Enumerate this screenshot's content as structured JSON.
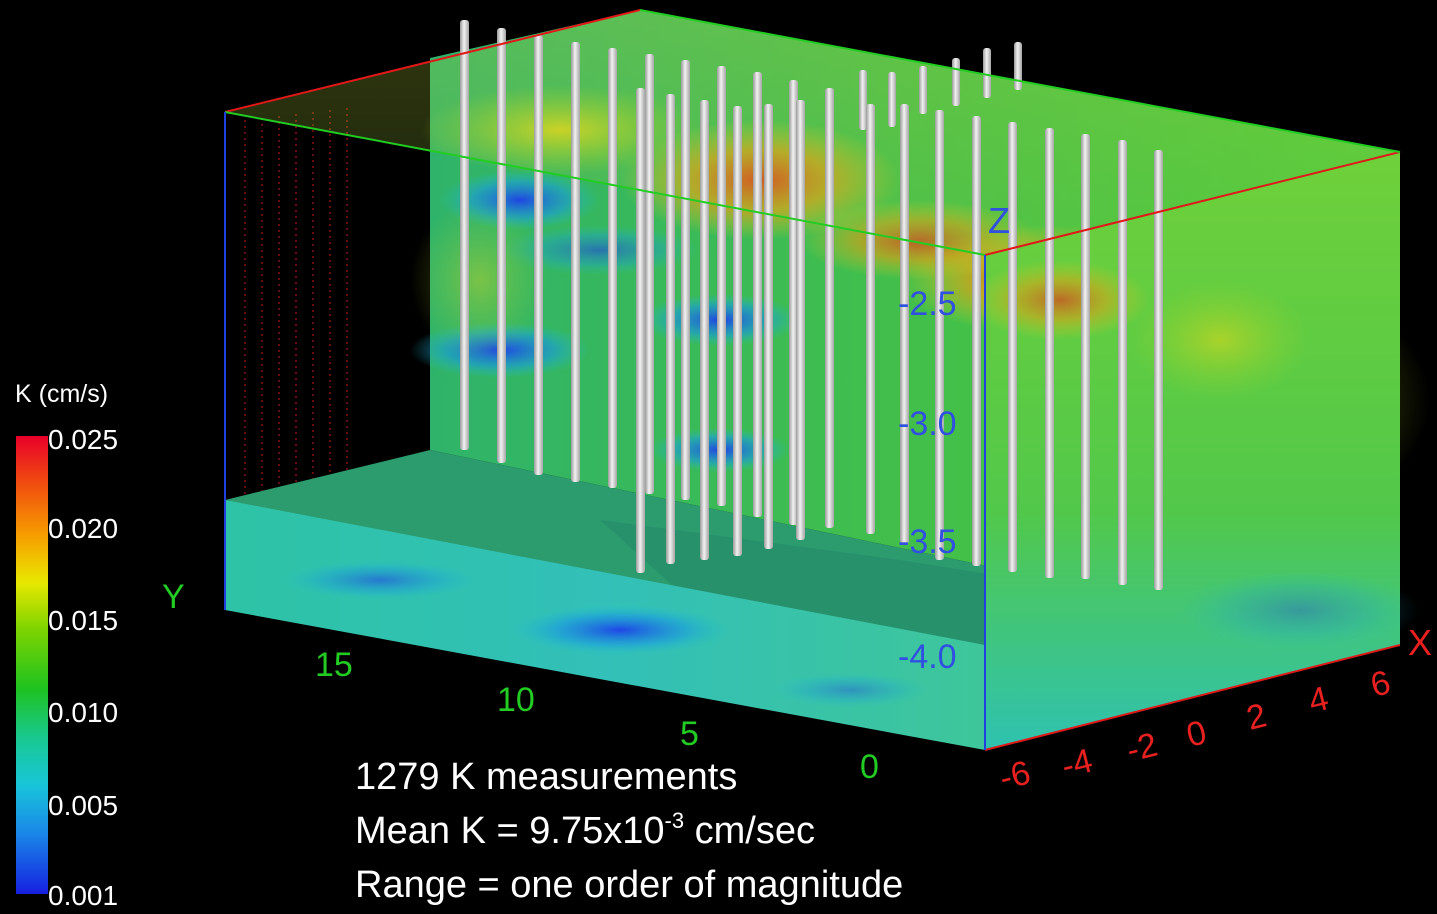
{
  "colorbar": {
    "title": "K (cm/s)",
    "ticks": [
      "0.025",
      "0.020",
      "0.015",
      "0.010",
      "0.005",
      "0.001"
    ],
    "colors": [
      "#1620e0",
      "#1a86e8",
      "#18c6d8",
      "#18c890",
      "#1fc21f",
      "#7fd400",
      "#e8e800",
      "#f7a000",
      "#f04a10",
      "#e8002a"
    ]
  },
  "axes": {
    "y": {
      "label": "Y",
      "ticks": [
        "15",
        "10",
        "5",
        "0"
      ],
      "color": "#22cc22"
    },
    "z": {
      "label": "Z",
      "ticks": [
        "-2.5",
        "-3.0",
        "-3.5",
        "-4.0"
      ],
      "color": "#3050e0"
    },
    "x": {
      "label": "X",
      "ticks": [
        "-6",
        "-4",
        "-2",
        "0",
        "2",
        "4",
        "6"
      ],
      "color": "#e82020"
    }
  },
  "annotation": {
    "line1": "1279 K measurements",
    "line2_pre": "Mean K = 9.75x10",
    "line2_exp": "-3",
    "line2_post": " cm/sec",
    "line3": "Range = one order of magnitude"
  }
}
